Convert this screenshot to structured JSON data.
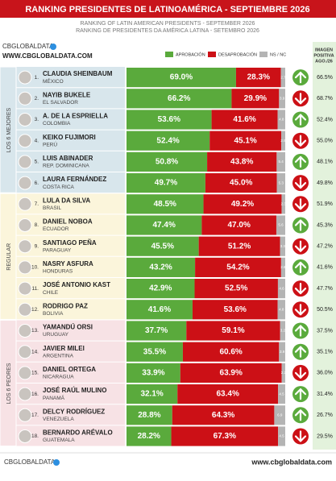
{
  "header": {
    "title": "RANKING PRESIDENTES DE LATINOAMÉRICA - SEPTIEMBRE 2026",
    "subtitle_en": "RANKING OF LATIN AMERICAN PRESIDENTS - SEPTEMBER 2026",
    "subtitle_pt": "RANKING DE PRESIDENTES DA AMÉRICA LATINA - SETEMBRO 2026"
  },
  "brand": {
    "name": "CBGLOBALDATA",
    "url": "WWW.CBGLOBALDATA.COM"
  },
  "legend": {
    "items": [
      {
        "label": "APROBACIÓN",
        "color": "#5aaa3c"
      },
      {
        "label": "DESAPROBACIÓN",
        "color": "#cc1016"
      },
      {
        "label": "NS / NC",
        "color": "#b4b4b4"
      }
    ]
  },
  "prev_header": [
    "IMAGEN",
    "POSITIVA",
    "AGO./26"
  ],
  "groups": [
    {
      "label": "LOS 6 MEJORES",
      "color": "#d8e6ec",
      "rows": [
        0,
        5
      ]
    },
    {
      "label": "REGULAR",
      "color": "#fbf5db",
      "rows": [
        6,
        11
      ]
    },
    {
      "label": "LOS 6 PEORES",
      "color": "#f7e2e5",
      "rows": [
        12,
        17
      ]
    }
  ],
  "rows": [
    {
      "rank": "1.",
      "name": "CLAUDIA SHEINBAUM",
      "country": "MÉXICO",
      "values": [
        69,
        28.3,
        2.7
      ],
      "value_labels": [
        "69.0%",
        "28.3%",
        "2.7"
      ],
      "trend": "up",
      "prev": "66.5%"
    },
    {
      "rank": "2.",
      "name": "NAYIB BUKELE",
      "country": "EL SALVADOR",
      "values": [
        66.2,
        29.9,
        3.9
      ],
      "value_labels": [
        "66.2%",
        "29.9%",
        "3.9"
      ],
      "trend": "down",
      "prev": "68.7%"
    },
    {
      "rank": "3.",
      "name": "A. DE LA ESPRIELLA",
      "country": "COLOMBIA",
      "values": [
        53.6,
        41.6,
        4.8
      ],
      "value_labels": [
        "53.6%",
        "41.6%",
        "4.8"
      ],
      "trend": "up",
      "prev": "52.4%"
    },
    {
      "rank": "4.",
      "name": "KEIKO FUJIMORI",
      "country": "PERÚ",
      "values": [
        52.4,
        45.1,
        2.5
      ],
      "value_labels": [
        "52.4%",
        "45.1%",
        "2.5"
      ],
      "trend": "down",
      "prev": "55.0%"
    },
    {
      "rank": "5.",
      "name": "LUIS ABINADER",
      "country": "REP. DOMINICANA",
      "values": [
        50.8,
        43.8,
        5.4
      ],
      "value_labels": [
        "50.8%",
        "43.8%",
        "5.4"
      ],
      "trend": "up",
      "prev": "48.1%"
    },
    {
      "rank": "6.",
      "name": "LAURA FERNÁNDEZ",
      "country": "COSTA RICA",
      "values": [
        49.7,
        45,
        5.3
      ],
      "value_labels": [
        "49.7%",
        "45.0%",
        "5.3"
      ],
      "trend": "down",
      "prev": "49.8%"
    },
    {
      "rank": "7.",
      "name": "LULA DA SILVA",
      "country": "BRASIL",
      "values": [
        48.5,
        49.2,
        2.3
      ],
      "value_labels": [
        "48.5%",
        "49.2%",
        "2.3"
      ],
      "trend": "down",
      "prev": "51.9%"
    },
    {
      "rank": "8.",
      "name": "DANIEL NOBOA",
      "country": "ECUADOR",
      "values": [
        47.4,
        47,
        5.6
      ],
      "value_labels": [
        "47.4%",
        "47.0%",
        "5.6"
      ],
      "trend": "up",
      "prev": "45.3%"
    },
    {
      "rank": "9.",
      "name": "SANTIAGO PEÑA",
      "country": "PARAGUAY",
      "values": [
        45.5,
        51.2,
        3.3
      ],
      "value_labels": [
        "45.5%",
        "51.2%",
        "3.3"
      ],
      "trend": "down",
      "prev": "47.2%"
    },
    {
      "rank": "10.",
      "name": "NASRY ASFURA",
      "country": "HONDURAS",
      "values": [
        43.2,
        54.2,
        2.6
      ],
      "value_labels": [
        "43.2%",
        "54.2%",
        "2.6"
      ],
      "trend": "up",
      "prev": "41.6%"
    },
    {
      "rank": "11.",
      "name": "JOSÉ ANTONIO KAST",
      "country": "CHILE",
      "values": [
        42.9,
        52.5,
        4.6
      ],
      "value_labels": [
        "42.9%",
        "52.5%",
        "4.6"
      ],
      "trend": "down",
      "prev": "47.7%"
    },
    {
      "rank": "12.",
      "name": "RODRIGO PAZ",
      "country": "BOLIVIA",
      "values": [
        41.6,
        53.6,
        4.8
      ],
      "value_labels": [
        "41.6%",
        "53.6%",
        "4.8"
      ],
      "trend": "down",
      "prev": "50.5%"
    },
    {
      "rank": "13.",
      "name": "YAMANDÚ ORSI",
      "country": "URUGUAY",
      "values": [
        37.7,
        59.1,
        3.2
      ],
      "value_labels": [
        "37.7%",
        "59.1%",
        "3.2"
      ],
      "trend": "up",
      "prev": "37.5%"
    },
    {
      "rank": "14.",
      "name": "JAVIER MILEI",
      "country": "ARGENTINA",
      "values": [
        35.5,
        60.6,
        3.9
      ],
      "value_labels": [
        "35.5%",
        "60.6%",
        "3.9"
      ],
      "trend": "up",
      "prev": "35.1%"
    },
    {
      "rank": "15.",
      "name": "DANIEL ORTEGA",
      "country": "NICARAGUA",
      "values": [
        33.9,
        63.9,
        2.2
      ],
      "value_labels": [
        "33.9%",
        "63.9%",
        "2.2"
      ],
      "trend": "down",
      "prev": "36.0%"
    },
    {
      "rank": "16.",
      "name": "JOSÉ RAÚL MULINO",
      "country": "PANAMÁ",
      "values": [
        32.1,
        63.4,
        4.5
      ],
      "value_labels": [
        "32.1%",
        "63.4%",
        "4.5"
      ],
      "trend": "up",
      "prev": "31.4%"
    },
    {
      "rank": "17.",
      "name": "DELCY RODRÍGUEZ",
      "country": "VENEZUELA",
      "values": [
        28.8,
        64.3,
        6.9
      ],
      "value_labels": [
        "28.8%",
        "64.3%",
        "6.9"
      ],
      "trend": "up",
      "prev": "26.7%"
    },
    {
      "rank": "18.",
      "name": "BERNARDO ARÉVALO",
      "country": "GUATEMALA",
      "values": [
        28.2,
        67.3,
        4.5
      ],
      "value_labels": [
        "28.2%",
        "67.3%",
        "4.5"
      ],
      "trend": "down",
      "prev": "29.5%"
    }
  ],
  "footer": {
    "brand": "CBGLOBALDATA",
    "url": "www.cbglobaldata.com"
  }
}
